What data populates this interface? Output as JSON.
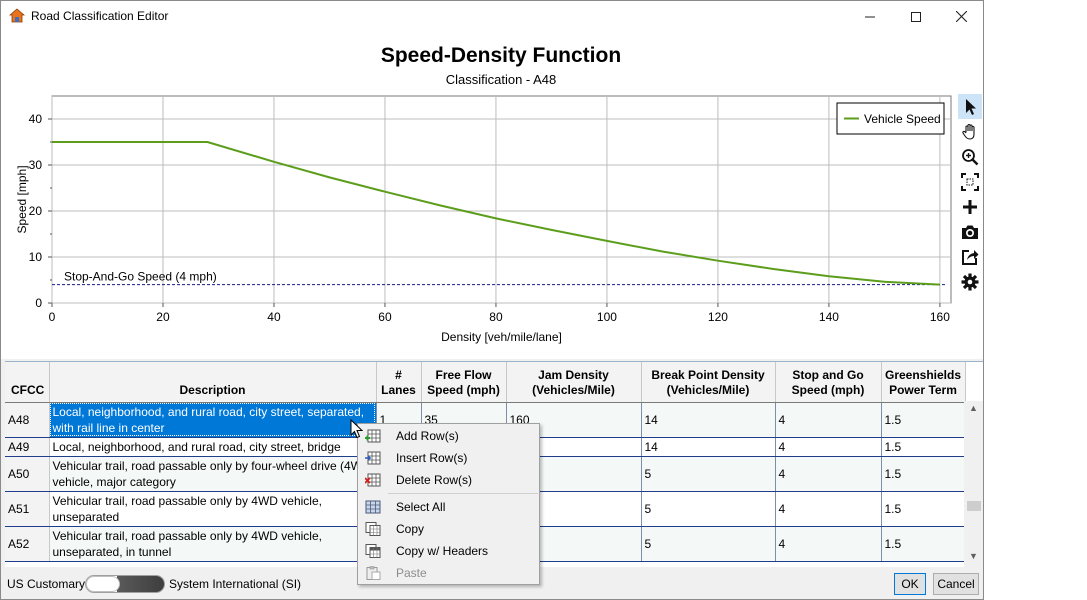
{
  "window": {
    "title": "Road Classification Editor",
    "controls": {
      "minimize": "minimize-icon",
      "maximize": "maximize-icon",
      "close": "close-icon"
    }
  },
  "chart_data": {
    "type": "line",
    "title": "Speed-Density Function",
    "subtitle": "Classification - A48",
    "xlabel": "Density [veh/mile/lane]",
    "ylabel": "Speed [mph]",
    "xlim": [
      0,
      162
    ],
    "ylim": [
      0,
      45
    ],
    "xticks": [
      0,
      20,
      40,
      60,
      80,
      100,
      120,
      140,
      160
    ],
    "yticks": [
      0,
      10,
      20,
      30,
      40
    ],
    "grid": true,
    "legend_position": "top-right",
    "series": [
      {
        "name": "Vehicle Speed",
        "color": "#5c9e1c",
        "x": [
          0,
          14,
          28,
          40,
          50,
          60,
          70,
          80,
          90,
          100,
          110,
          120,
          130,
          140,
          150,
          160
        ],
        "y": [
          35,
          35,
          35,
          30.7,
          27.3,
          24.2,
          21.2,
          18.4,
          15.9,
          13.5,
          11.2,
          9.2,
          7.4,
          5.8,
          4.6,
          4
        ]
      }
    ],
    "reference_line": {
      "label": "Stop-And-Go Speed (4 mph)",
      "y": 4,
      "color": "#1a1a8c",
      "style": "dashed"
    }
  },
  "toolbar": {
    "tools": [
      "pointer-icon",
      "pan-hand-icon",
      "zoom-in-icon",
      "zoom-fit-icon",
      "add-point-icon",
      "camera-icon",
      "export-icon",
      "settings-gear-icon"
    ]
  },
  "grid": {
    "headers": {
      "cfcc": "CFCC",
      "description": "Description",
      "lanes": [
        "#",
        "Lanes"
      ],
      "free_flow": [
        "Free Flow",
        "Speed (mph)"
      ],
      "jam_density": [
        "Jam Density",
        "(Vehicles/Mile)"
      ],
      "break_point": [
        "Break Point Density",
        "(Vehicles/Mile)"
      ],
      "stop_and_go": [
        "Stop and Go",
        "Speed (mph)"
      ],
      "greenshields": [
        "Greenshields",
        "Power Term"
      ]
    },
    "rows": [
      {
        "cfcc": "A48",
        "description": "Local, neighborhood, and rural road, city street, separated, with rail line in center",
        "lanes": "1",
        "free_flow": "35",
        "jam_density": "160",
        "break_point": "14",
        "stop_and_go": "4",
        "greenshields": "1.5"
      },
      {
        "cfcc": "A49",
        "description": "Local, neighborhood, and rural road, city street, bridge",
        "lanes": "",
        "free_flow": "",
        "jam_density": "",
        "break_point": "14",
        "stop_and_go": "4",
        "greenshields": "1.5"
      },
      {
        "cfcc": "A50",
        "description": "Vehicular trail, road passable only by four-wheel drive (4W vehicle, major category",
        "lanes": "",
        "free_flow": "",
        "jam_density": "",
        "break_point": "5",
        "stop_and_go": "4",
        "greenshields": "1.5"
      },
      {
        "cfcc": "A51",
        "description": "Vehicular trail, road passable only by 4WD vehicle, unseparated",
        "lanes": "",
        "free_flow": "",
        "jam_density": "",
        "break_point": "5",
        "stop_and_go": "4",
        "greenshields": "1.5"
      },
      {
        "cfcc": "A52",
        "description": "Vehicular trail, road passable only by 4WD vehicle, unseparated, in tunnel",
        "lanes": "",
        "free_flow": "",
        "jam_density": "",
        "break_point": "5",
        "stop_and_go": "4",
        "greenshields": "1.5"
      }
    ]
  },
  "context_menu": {
    "items": [
      {
        "label": "Add Row(s)",
        "icon": "add-row-icon",
        "enabled": true
      },
      {
        "label": "Insert Row(s)",
        "icon": "insert-row-icon",
        "enabled": true
      },
      {
        "label": "Delete Row(s)",
        "icon": "delete-row-icon",
        "enabled": true
      },
      {
        "label": "Select All",
        "icon": "select-all-icon",
        "enabled": true
      },
      {
        "label": "Copy",
        "icon": "copy-icon",
        "enabled": true
      },
      {
        "label": "Copy w/ Headers",
        "icon": "copy-headers-icon",
        "enabled": true
      },
      {
        "label": "Paste",
        "icon": "paste-icon",
        "enabled": false
      }
    ]
  },
  "footer": {
    "unit_left": "US Customary",
    "unit_right": "System International (SI)",
    "ok_label": "OK",
    "cancel_label": "Cancel"
  }
}
